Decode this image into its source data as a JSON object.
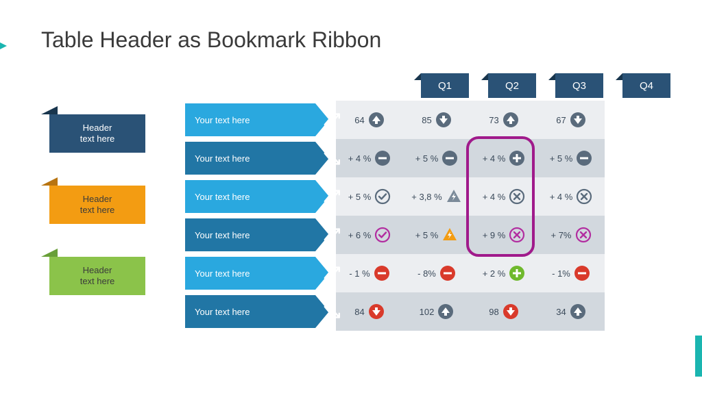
{
  "title": "Table Header as Bookmark Ribbon",
  "colors": {
    "title": "#3a3a3a",
    "tab_bg": "#2a5276",
    "tab_fold": "#18354d",
    "row_light": "#2aa8df",
    "row_light_fold": "#1d87b6",
    "row_dark": "#2176a5",
    "row_dark_fold": "#175a80",
    "cell_light": "#eceef1",
    "cell_dark": "#d2d8de",
    "highlight": "#a01a8b",
    "icon_gray": "#5a6b7c",
    "icon_red": "#d93a2b",
    "icon_green": "#6fb92d",
    "icon_magenta": "#b22da0",
    "icon_orange": "#f39c12",
    "icon_grayblue": "#7b8a99"
  },
  "bookmarks": [
    {
      "label": "Header\ntext here",
      "bg": "#2a5276",
      "fold": "#18354d",
      "text": "#ffffff"
    },
    {
      "label": "Header\ntext here",
      "bg": "#f39c12",
      "fold": "#b87410",
      "text": "#3b3b3b"
    },
    {
      "label": "Header\ntext here",
      "bg": "#8bc34a",
      "fold": "#689f38",
      "text": "#3b3b3b"
    }
  ],
  "columns": [
    "Q1",
    "Q2",
    "Q3",
    "Q4"
  ],
  "rows": [
    {
      "label": "Your text here",
      "shade": "light",
      "icon": "trend-up",
      "cells": [
        {
          "value": "64",
          "icon": "arrow-up-circle",
          "color": "icon_gray"
        },
        {
          "value": "85",
          "icon": "arrow-down-circle",
          "color": "icon_gray"
        },
        {
          "value": "73",
          "icon": "arrow-up-circle",
          "color": "icon_gray"
        },
        {
          "value": "67",
          "icon": "arrow-down-circle",
          "color": "icon_gray"
        }
      ]
    },
    {
      "label": "Your text here",
      "shade": "dark",
      "icon": "trend-down",
      "cells": [
        {
          "value": "+ 4 %",
          "icon": "minus-circle",
          "color": "icon_gray"
        },
        {
          "value": "+ 5 %",
          "icon": "minus-circle",
          "color": "icon_gray"
        },
        {
          "value": "+ 4 %",
          "icon": "plus-circle",
          "color": "icon_gray"
        },
        {
          "value": "+ 5 %",
          "icon": "minus-circle",
          "color": "icon_gray"
        }
      ]
    },
    {
      "label": "Your text here",
      "shade": "light",
      "icon": "trend-up",
      "cells": [
        {
          "value": "+ 5 %",
          "icon": "check-ring",
          "color": "icon_gray"
        },
        {
          "value": "+ 3,8 %",
          "icon": "bolt-triangle",
          "color": "icon_grayblue"
        },
        {
          "value": "+ 4 %",
          "icon": "x-ring",
          "color": "icon_gray"
        },
        {
          "value": "+ 4 %",
          "icon": "x-ring",
          "color": "icon_gray"
        }
      ]
    },
    {
      "label": "Your text here",
      "shade": "dark",
      "icon": "trend-up",
      "cells": [
        {
          "value": "+ 6 %",
          "icon": "check-ring",
          "color": "icon_magenta"
        },
        {
          "value": "+ 5 %",
          "icon": "bolt-triangle",
          "color": "icon_orange"
        },
        {
          "value": "+ 9 %",
          "icon": "x-ring",
          "color": "icon_magenta"
        },
        {
          "value": "+ 7%",
          "icon": "x-ring",
          "color": "icon_magenta"
        }
      ]
    },
    {
      "label": "Your text here",
      "shade": "light",
      "icon": "trend-up-wavy",
      "cells": [
        {
          "value": "- 1 %",
          "icon": "minus-circle",
          "color": "icon_red"
        },
        {
          "value": "- 8%",
          "icon": "minus-circle",
          "color": "icon_red"
        },
        {
          "value": "+ 2 %",
          "icon": "plus-circle",
          "color": "icon_green"
        },
        {
          "value": "- 1%",
          "icon": "minus-circle",
          "color": "icon_red"
        }
      ]
    },
    {
      "label": "Your text here",
      "shade": "dark",
      "icon": "trend-down",
      "cells": [
        {
          "value": "84",
          "icon": "arrow-down-circle",
          "color": "icon_red"
        },
        {
          "value": "102",
          "icon": "arrow-up-circle",
          "color": "icon_gray"
        },
        {
          "value": "98",
          "icon": "arrow-down-circle",
          "color": "icon_red"
        },
        {
          "value": "34",
          "icon": "arrow-up-circle",
          "color": "icon_gray"
        }
      ]
    }
  ],
  "highlight": {
    "col": 2,
    "row_start": 1,
    "row_end": 3
  }
}
